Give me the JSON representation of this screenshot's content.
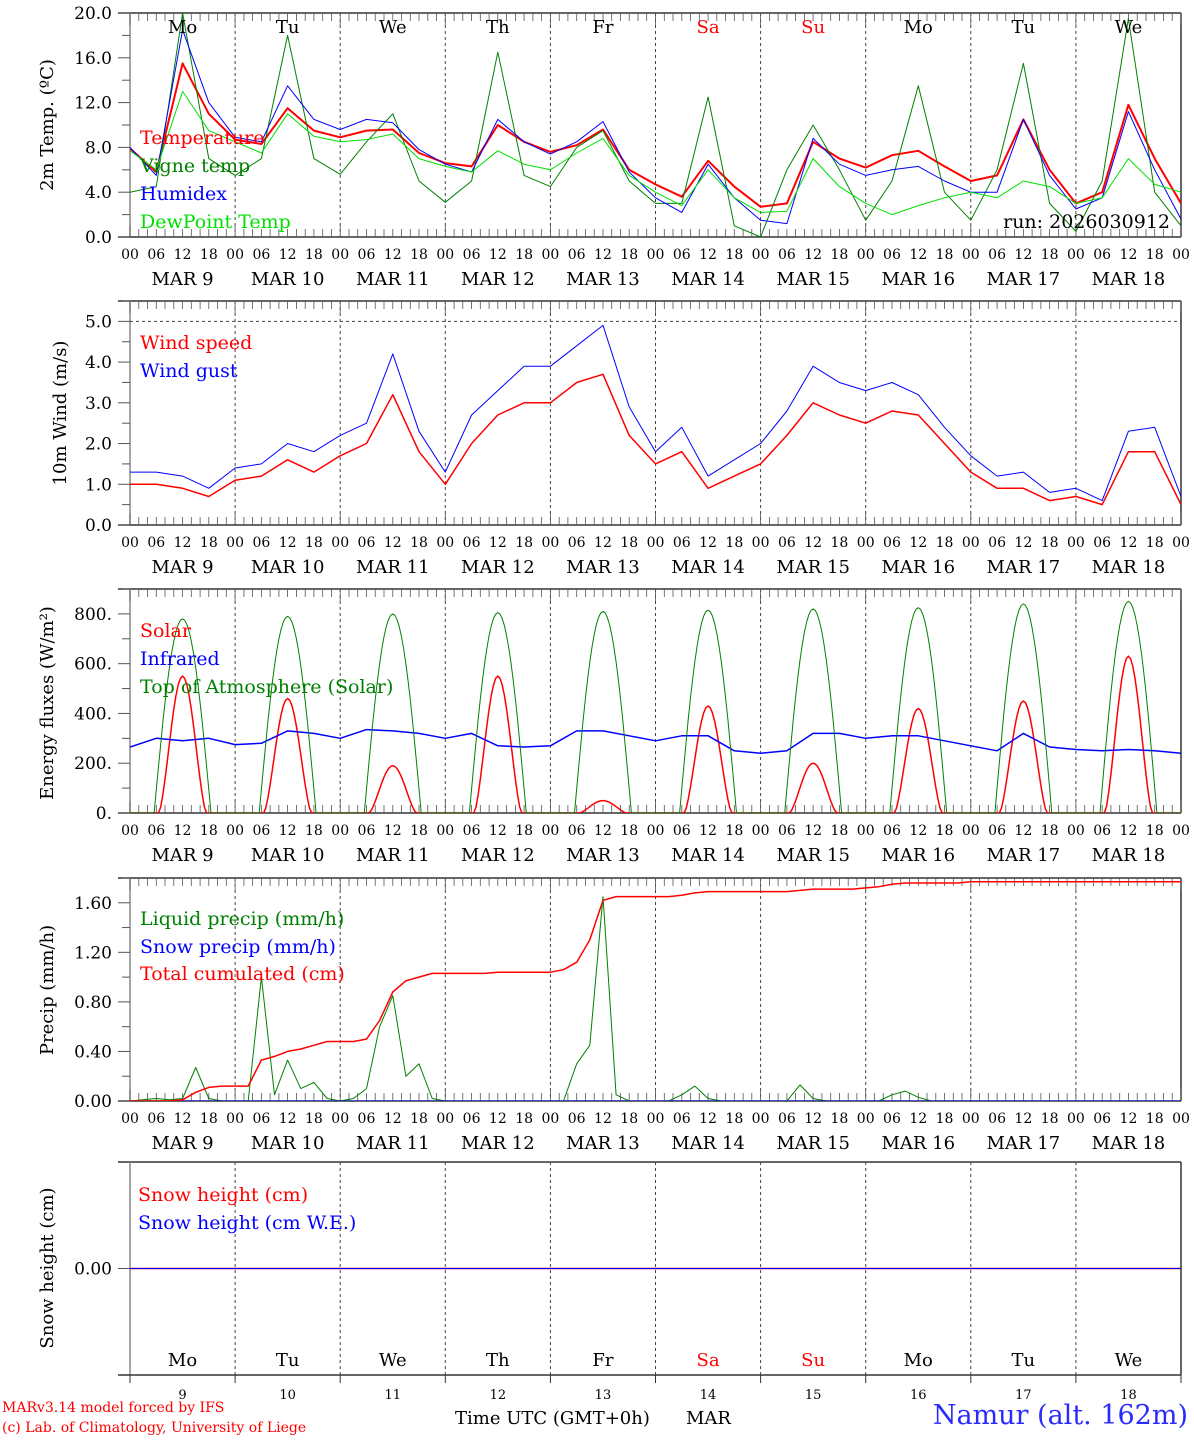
{
  "colors": {
    "red": "#ff0000",
    "blue": "#0000ff",
    "green": "#008000",
    "light_green": "#00e000",
    "dark": "#000000",
    "weekend": "#ff0000"
  },
  "axis": {
    "hour_labels": [
      "00",
      "06",
      "12",
      "18"
    ],
    "dates": [
      "MAR  9",
      "MAR 10",
      "MAR 11",
      "MAR 12",
      "MAR 13",
      "MAR 14",
      "MAR 15",
      "MAR 16",
      "MAR 17",
      "MAR 18"
    ],
    "day_names": [
      "Mo",
      "Tu",
      "We",
      "Th",
      "Fr",
      "Sa",
      "Su",
      "Mo",
      "Tu",
      "We"
    ],
    "weekend_flags": [
      false,
      false,
      false,
      false,
      false,
      true,
      true,
      false,
      false,
      false
    ],
    "day_numbers": [
      "9",
      "10",
      "11",
      "12",
      "13",
      "14",
      "15",
      "16",
      "17",
      "18"
    ],
    "xlabel": "Time UTC (GMT+0h)",
    "xlabel_month": "MAR"
  },
  "footer": {
    "model": "MARv3.14 model forced by IFS",
    "copyright": "(c) Lab. of Climatology, University of Liege",
    "station": "Namur (alt. 162m)"
  },
  "chart_data": [
    {
      "type": "line",
      "ylabel": "2m Temp. (ºC)",
      "ylim": [
        0,
        20
      ],
      "yticks": [
        "0.0",
        "4.0",
        "8.0",
        "12.0",
        "16.0",
        "20.0"
      ],
      "run_label": "run: 2026030912",
      "x_start": "MAR 9 00 UTC",
      "x_step_note": "6-hourly",
      "series": [
        {
          "name": "Temperature",
          "color": "#ff0000",
          "width": 2,
          "values": [
            7.9,
            5.8,
            15.5,
            11,
            8.7,
            8.3,
            11.5,
            9.5,
            8.9,
            9.5,
            9.6,
            7.5,
            6.6,
            6.3,
            10,
            8.5,
            7.6,
            8.2,
            9.6,
            6,
            4.7,
            3.6,
            6.8,
            4.5,
            2.7,
            3,
            8.5,
            7,
            6.2,
            7.3,
            7.7,
            6.3,
            5,
            5.5,
            10.5,
            6,
            3,
            4,
            11.8,
            7,
            3
          ]
        },
        {
          "name": "Vigne temp",
          "color": "#008000",
          "width": 1,
          "values": [
            4,
            4.5,
            20,
            7,
            5.5,
            7,
            18,
            7,
            5.6,
            8.5,
            11,
            5,
            3.1,
            5,
            16.5,
            5.5,
            4.5,
            8,
            9.5,
            5,
            3,
            3,
            12.5,
            1,
            0,
            6,
            10,
            6,
            1.5,
            5,
            13.5,
            4,
            1.5,
            6,
            15.5,
            3,
            0.5,
            5,
            19.5,
            4,
            1
          ]
        },
        {
          "name": "Humidex",
          "color": "#0000ff",
          "width": 1,
          "values": [
            8,
            5.5,
            18.5,
            12,
            8.9,
            8.5,
            13.5,
            10.5,
            9.6,
            10.5,
            10.2,
            7.8,
            6.5,
            5.8,
            10.5,
            8.5,
            7.4,
            8.5,
            10.3,
            5.8,
            3.5,
            2.2,
            6.5,
            3.5,
            1.5,
            1.2,
            8.8,
            6.5,
            5.5,
            6,
            6.3,
            5,
            4,
            4,
            10.5,
            5.5,
            2.5,
            3.5,
            11.2,
            6,
            1.6
          ]
        },
        {
          "name": "DewPoint Temp",
          "color": "#00e000",
          "width": 1,
          "values": [
            7.7,
            6,
            13,
            9.5,
            8.5,
            7.5,
            11,
            9,
            8.5,
            8.7,
            9.2,
            7,
            6.3,
            5.8,
            7.7,
            6.5,
            6,
            7.5,
            8.8,
            5.5,
            4,
            2.8,
            6,
            3.5,
            2.2,
            2.3,
            7,
            4.5,
            3,
            2,
            2.8,
            3.5,
            4,
            3.5,
            5,
            4.5,
            3,
            3.5,
            7,
            4.7,
            4
          ]
        }
      ]
    },
    {
      "type": "line",
      "ylabel": "10m Wind (m/s)",
      "ylim": [
        0,
        5.5
      ],
      "yticks": [
        "0.0",
        "1.0",
        "2.0",
        "3.0",
        "4.0",
        "5.0"
      ],
      "reference_line": 5.0,
      "series": [
        {
          "name": "Wind speed",
          "color": "#ff0000",
          "width": 1.5,
          "values": [
            1.0,
            1.0,
            0.9,
            0.7,
            1.1,
            1.2,
            1.6,
            1.3,
            1.7,
            2.0,
            3.2,
            1.8,
            1.0,
            2.0,
            2.7,
            3.0,
            3.0,
            3.5,
            3.7,
            2.2,
            1.5,
            1.8,
            0.9,
            1.2,
            1.5,
            2.2,
            3.0,
            2.7,
            2.5,
            2.8,
            2.7,
            2.0,
            1.3,
            0.9,
            0.9,
            0.6,
            0.7,
            0.5,
            1.8,
            1.8,
            0.5
          ]
        },
        {
          "name": "Wind gust",
          "color": "#0000ff",
          "width": 1,
          "values": [
            1.3,
            1.3,
            1.2,
            0.9,
            1.4,
            1.5,
            2.0,
            1.8,
            2.2,
            2.5,
            4.2,
            2.3,
            1.3,
            2.7,
            3.3,
            3.9,
            3.9,
            4.4,
            4.9,
            2.9,
            1.8,
            2.4,
            1.2,
            1.6,
            2.0,
            2.8,
            3.9,
            3.5,
            3.3,
            3.5,
            3.2,
            2.4,
            1.7,
            1.2,
            1.3,
            0.8,
            0.9,
            0.6,
            2.3,
            2.4,
            0.7
          ]
        }
      ]
    },
    {
      "type": "line",
      "ylabel": "Energy fluxes (W/m²)",
      "ylim": [
        0,
        900
      ],
      "yticks": [
        "0.",
        "200.",
        "400.",
        "600.",
        "800."
      ],
      "series": [
        {
          "name": "Solar",
          "color": "#ff0000",
          "width": 1.5,
          "daily_peak": [
            550,
            460,
            190,
            550,
            50,
            430,
            200,
            420,
            450,
            630
          ]
        },
        {
          "name": "Infrared",
          "color": "#0000ff",
          "width": 1.5,
          "values": [
            265,
            300,
            290,
            300,
            275,
            280,
            330,
            320,
            300,
            335,
            330,
            320,
            300,
            320,
            270,
            265,
            270,
            330,
            330,
            310,
            290,
            310,
            310,
            250,
            240,
            250,
            320,
            320,
            300,
            310,
            310,
            290,
            270,
            250,
            320,
            265,
            255,
            250,
            255,
            250,
            240
          ]
        },
        {
          "name": "Top of Atmosphere (Solar)",
          "color": "#008000",
          "width": 1,
          "daily_peak": [
            780,
            790,
            800,
            805,
            810,
            815,
            820,
            825,
            840,
            850
          ]
        }
      ]
    },
    {
      "type": "line",
      "ylabel": "Precip (mm/h)",
      "ylim": [
        0,
        1.8
      ],
      "yticks": [
        "0.00",
        "0.40",
        "0.80",
        "1.20",
        "1.60"
      ],
      "x_step_note": "3-hourly",
      "series": [
        {
          "name": "Liquid precip (mm/h)",
          "color": "#008000",
          "width": 1,
          "values": [
            0,
            0.01,
            0.02,
            0.01,
            0.02,
            0.27,
            0.02,
            0,
            0,
            0,
            1.0,
            0.05,
            0.33,
            0.1,
            0.15,
            0.02,
            0,
            0.02,
            0.1,
            0.6,
            0.85,
            0.2,
            0.3,
            0.02,
            0,
            0,
            0,
            0,
            0,
            0,
            0,
            0,
            0,
            0,
            0.3,
            0.45,
            1.65,
            0.05,
            0,
            0,
            0,
            0,
            0.05,
            0.12,
            0.02,
            0,
            0,
            0,
            0,
            0,
            0,
            0.13,
            0.02,
            0,
            0,
            0,
            0,
            0,
            0.05,
            0.08,
            0.03,
            0,
            0,
            0,
            0,
            0,
            0,
            0,
            0,
            0,
            0,
            0,
            0,
            0,
            0,
            0,
            0,
            0,
            0,
            0,
            0
          ]
        },
        {
          "name": "Snow precip (mm/h)",
          "color": "#0000ff",
          "width": 1,
          "values": [
            0,
            0
          ]
        },
        {
          "name": "Total cumulated (cm)",
          "color": "#ff0000",
          "width": 1.5,
          "values": [
            0,
            0,
            0,
            0,
            0.01,
            0.07,
            0.11,
            0.12,
            0.12,
            0.12,
            0.33,
            0.36,
            0.4,
            0.42,
            0.45,
            0.48,
            0.48,
            0.48,
            0.5,
            0.65,
            0.88,
            0.97,
            1.0,
            1.03,
            1.03,
            1.03,
            1.03,
            1.03,
            1.04,
            1.04,
            1.04,
            1.04,
            1.04,
            1.06,
            1.12,
            1.3,
            1.62,
            1.65,
            1.65,
            1.65,
            1.65,
            1.65,
            1.66,
            1.68,
            1.69,
            1.69,
            1.69,
            1.69,
            1.69,
            1.69,
            1.69,
            1.7,
            1.71,
            1.71,
            1.71,
            1.71,
            1.72,
            1.73,
            1.75,
            1.76,
            1.76,
            1.76,
            1.76,
            1.76,
            1.77,
            1.77,
            1.77,
            1.77,
            1.77,
            1.77,
            1.77,
            1.77,
            1.77,
            1.77,
            1.77,
            1.77,
            1.77,
            1.77,
            1.77,
            1.77,
            1.77
          ]
        }
      ]
    },
    {
      "type": "line",
      "ylabel": "Snow height (cm)",
      "ylim": [
        -1,
        1
      ],
      "yticks": [
        "0.00"
      ],
      "series": [
        {
          "name": "Snow height (cm)",
          "color": "#ff0000",
          "width": 1.5,
          "values": [
            0,
            0
          ]
        },
        {
          "name": "Snow height (cm W.E.)",
          "color": "#0000ff",
          "width": 1,
          "values": [
            0,
            0
          ]
        }
      ]
    }
  ]
}
